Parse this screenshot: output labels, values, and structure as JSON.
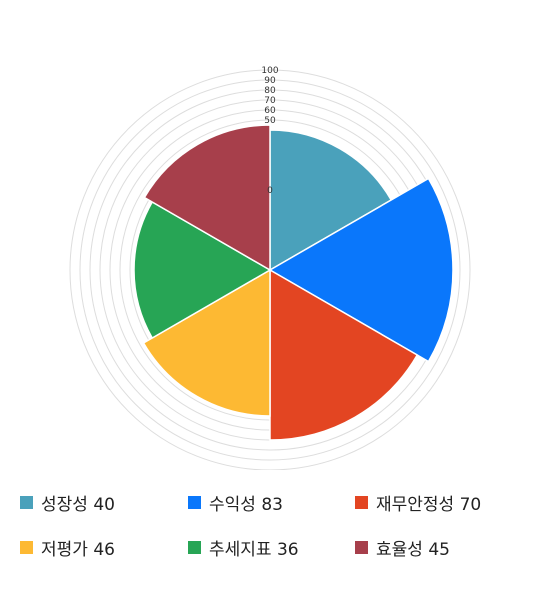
{
  "chart_data": {
    "type": "polar-area",
    "categories": [
      "성장성",
      "수익성",
      "재무안정성",
      "저평가",
      "추세지표",
      "효율성"
    ],
    "values": [
      40,
      83,
      70,
      46,
      36,
      45
    ],
    "colors": [
      "#4aa1bb",
      "#0a77fb",
      "#e34522",
      "#fdb933",
      "#27a555",
      "#a73f4b"
    ],
    "r_ticks": [
      "0",
      "50",
      "60",
      "70",
      "80",
      "90",
      "100"
    ],
    "rlim": [
      0,
      100
    ],
    "legend": [
      {
        "label": "성장성",
        "value": "40"
      },
      {
        "label": "수익성",
        "value": "83"
      },
      {
        "label": "재무안정성",
        "value": "70"
      },
      {
        "label": "저평가",
        "value": "46"
      },
      {
        "label": "추세지표",
        "value": "36"
      },
      {
        "label": "효율성",
        "value": "45"
      }
    ],
    "legend_placement": "bottom"
  }
}
